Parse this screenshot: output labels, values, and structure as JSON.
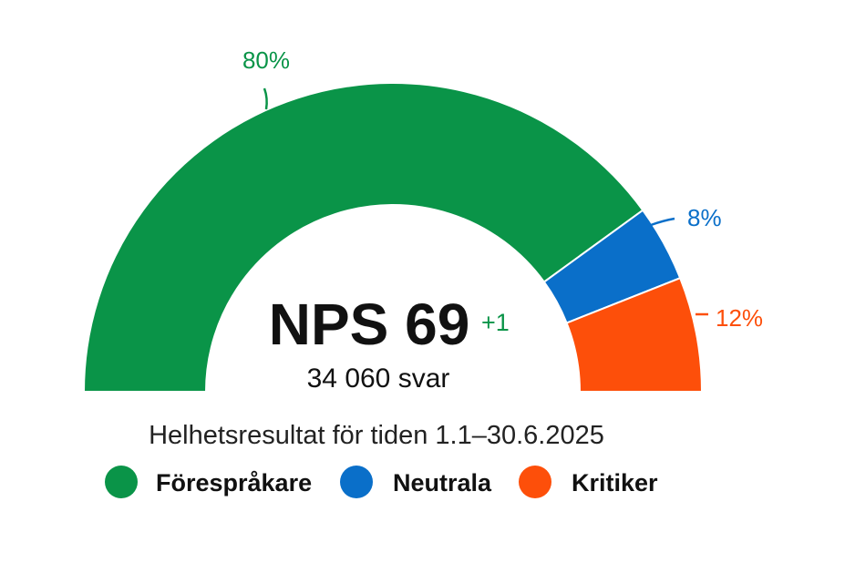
{
  "chart_data": {
    "type": "pie",
    "style": "semicircle-donut",
    "segments": [
      {
        "name": "Förespråkare",
        "value": 80,
        "label": "80%",
        "color": "#0a9448"
      },
      {
        "name": "Neutrala",
        "value": 8,
        "label": "8%",
        "color": "#0a6fc9"
      },
      {
        "name": "Kritiker",
        "value": 12,
        "label": "12%",
        "color": "#fd4f0a"
      }
    ],
    "center": {
      "main": "NPS 69",
      "delta": "+1",
      "delta_color": "#0a9448",
      "sub": "34 060 svar"
    },
    "caption": "Helhetsresultat för tiden 1.1–30.6.2025",
    "legend": [
      {
        "label": "Förespråkare",
        "color": "#0a9448"
      },
      {
        "label": "Neutrala",
        "color": "#0a6fc9"
      },
      {
        "label": "Kritiker",
        "color": "#fd4f0a"
      }
    ],
    "legend_position": "bottom"
  }
}
